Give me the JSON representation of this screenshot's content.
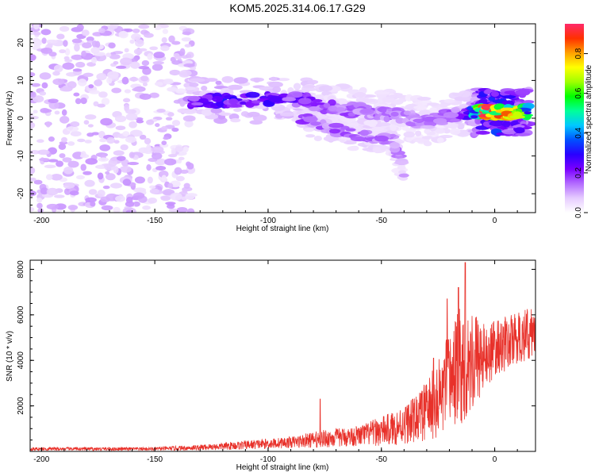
{
  "title": "KOM5.2025.314.06.17.G29",
  "chart_data": [
    {
      "type": "heatmap",
      "xlabel": "Height of straight line (km)",
      "ylabel": "Frequency (Hz)",
      "xlim": [
        -205,
        18
      ],
      "ylim": [
        -25,
        25
      ],
      "xticks": [
        -200,
        -150,
        -100,
        -50,
        0
      ],
      "yticks": [
        -20,
        -10,
        0,
        10,
        20
      ],
      "colorbar": {
        "label": "Normalized spectral amplitude",
        "ticks": [
          "0.0",
          "0.2",
          "0.4",
          "0.6",
          "0.8"
        ],
        "range": [
          0,
          0.95
        ],
        "colormap": [
          "#ffffff",
          "#e6ccff",
          "#b36bff",
          "#7a00ff",
          "#2a00ff",
          "#0050ff",
          "#00c8ff",
          "#00ff9a",
          "#00ff00",
          "#a0ff00",
          "#ffff00",
          "#ffa000",
          "#ff3000",
          "#ff2a6a"
        ]
      },
      "noise_region": {
        "x": [
          -205,
          -133
        ],
        "y": [
          -25,
          25
        ],
        "level": 0.08
      },
      "ridge": {
        "description_points": [
          {
            "x": -135,
            "y": 4.5,
            "amp": 0.22
          },
          {
            "x": -120,
            "y": 4.5,
            "amp": 0.28
          },
          {
            "x": -100,
            "y": 5.0,
            "amp": 0.26
          },
          {
            "x": -85,
            "y": 5.0,
            "amp": 0.22
          },
          {
            "x": -75,
            "y": 3.0,
            "amp": 0.18
          },
          {
            "x": -60,
            "y": 2.0,
            "amp": 0.16
          },
          {
            "x": -50,
            "y": 1.5,
            "amp": 0.15
          },
          {
            "x": -40,
            "y": 0.5,
            "amp": 0.14
          },
          {
            "x": -30,
            "y": -1.0,
            "amp": 0.15
          },
          {
            "x": -20,
            "y": 0.5,
            "amp": 0.14
          },
          {
            "x": -10,
            "y": 1.5,
            "amp": 0.3
          },
          {
            "x": -5,
            "y": 1.8,
            "amp": 0.82
          },
          {
            "x": 0,
            "y": 1.6,
            "amp": 0.92
          },
          {
            "x": 5,
            "y": 1.5,
            "amp": 0.75
          },
          {
            "x": 10,
            "y": 1.6,
            "amp": 0.7
          },
          {
            "x": 15,
            "y": 1.7,
            "amp": 0.5
          }
        ],
        "lower_branch": [
          {
            "x": -85,
            "y": 0.0,
            "amp": 0.18
          },
          {
            "x": -75,
            "y": -2.0,
            "amp": 0.17
          },
          {
            "x": -65,
            "y": -4.0,
            "amp": 0.16
          },
          {
            "x": -55,
            "y": -4.5,
            "amp": 0.15
          },
          {
            "x": -45,
            "y": -5.5,
            "amp": 0.14
          },
          {
            "x": -40,
            "y": -14.5,
            "amp": 0.12
          }
        ]
      }
    },
    {
      "type": "line",
      "xlabel": "Height of straight line (km)",
      "ylabel": "SNR (10 * v/v)",
      "xlim": [
        -205,
        18
      ],
      "ylim": [
        0,
        8400
      ],
      "xticks": [
        -200,
        -150,
        -100,
        -50,
        0
      ],
      "yticks": [
        2000,
        4000,
        6000,
        8000
      ],
      "color": "#e8312a",
      "envelope": [
        {
          "x": -205,
          "base": 80,
          "spread": 150
        },
        {
          "x": -150,
          "base": 80,
          "spread": 150
        },
        {
          "x": -130,
          "base": 120,
          "spread": 250
        },
        {
          "x": -110,
          "base": 200,
          "spread": 400
        },
        {
          "x": -90,
          "base": 300,
          "spread": 500
        },
        {
          "x": -75,
          "base": 400,
          "spread": 800
        },
        {
          "x": -60,
          "base": 500,
          "spread": 900
        },
        {
          "x": -45,
          "base": 700,
          "spread": 1500
        },
        {
          "x": -35,
          "base": 1000,
          "spread": 2000
        },
        {
          "x": -25,
          "base": 1500,
          "spread": 3500
        },
        {
          "x": -18,
          "base": 2500,
          "spread": 5000
        },
        {
          "x": -12,
          "base": 3000,
          "spread": 5300
        },
        {
          "x": -5,
          "base": 3500,
          "spread": 3000
        },
        {
          "x": 0,
          "base": 4000,
          "spread": 2500
        },
        {
          "x": 10,
          "base": 4500,
          "spread": 2300
        },
        {
          "x": 18,
          "base": 4800,
          "spread": 2300
        }
      ],
      "spikes": [
        {
          "x": -77,
          "y": 2300
        },
        {
          "x": -13,
          "y": 8300
        },
        {
          "x": -16,
          "y": 7200
        },
        {
          "x": -21,
          "y": 6700
        },
        {
          "x": -27,
          "y": 4100
        }
      ]
    }
  ]
}
